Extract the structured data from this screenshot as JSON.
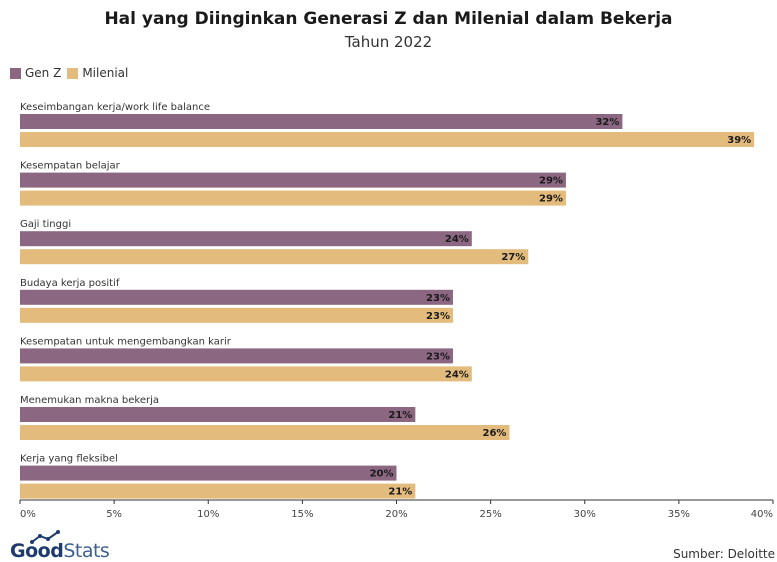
{
  "title": "Hal yang Diinginkan Generasi Z dan Milenial dalam Bekerja",
  "subtitle": "Tahun 2022",
  "source": "Sumber: Deloitte",
  "logo": {
    "bold": "Good",
    "light": "Stats"
  },
  "colors": {
    "genz": "#8c6782",
    "milenial": "#e2bb7d"
  },
  "chart_data": {
    "type": "bar",
    "orientation": "horizontal",
    "categories": [
      "Keseimbangan kerja/work life balance",
      "Kesempatan belajar",
      "Gaji tinggi",
      "Budaya kerja positif",
      "Kesempatan untuk mengembangkan karir",
      "Menemukan makna bekerja",
      "Kerja yang fleksibel"
    ],
    "series": [
      {
        "name": "Gen Z",
        "values": [
          32,
          29,
          24,
          23,
          23,
          21,
          20
        ]
      },
      {
        "name": "Milenial",
        "values": [
          39,
          29,
          27,
          23,
          24,
          26,
          21
        ]
      }
    ],
    "value_labels": {
      "Gen Z": [
        "32%",
        "29%",
        "24%",
        "23%",
        "23%",
        "21%",
        "20%"
      ],
      "Milenial": [
        "39%",
        "29%",
        "27%",
        "23%",
        "24%",
        "26%",
        "21%"
      ]
    },
    "xlim": [
      0,
      40
    ],
    "xticks": [
      "0%",
      "5%",
      "10%",
      "15%",
      "20%",
      "25%",
      "30%",
      "35%",
      "40%"
    ],
    "legend": "top-left",
    "grid": false
  }
}
